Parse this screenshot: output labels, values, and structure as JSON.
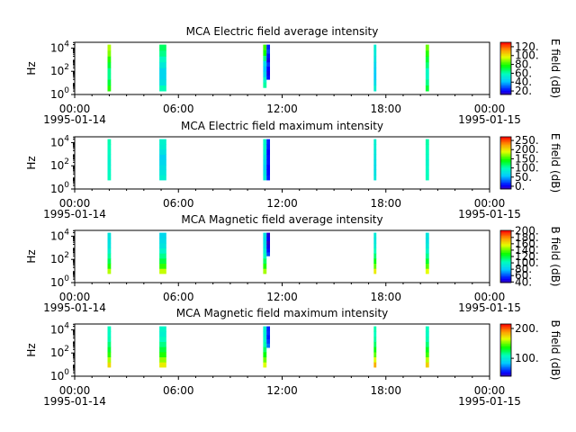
{
  "shared": {
    "x_tick_labels": [
      "00:00",
      "06:00",
      "12:00",
      "18:00",
      "00:00"
    ],
    "x_tick_hours": [
      0,
      6,
      12,
      18,
      24
    ],
    "x_range_hours": [
      0,
      24
    ],
    "date_left": "1995-01-14",
    "date_right": "1995-01-15",
    "y_range_log10": [
      0,
      4.5
    ],
    "y_tick_exponents": [
      0,
      2,
      4
    ],
    "y_tick_base": "10",
    "colormap": "rainbow"
  },
  "chart_data": [
    {
      "type": "heatmap",
      "title": "MCA  Electric field average intensity",
      "ylabel": "Hz",
      "colorbar_label": "E field (dB)",
      "colorbar_ticks": [
        "20.",
        "40.",
        "60.",
        "80.",
        "100.",
        "120."
      ],
      "colorbar_tick_values": [
        20,
        40,
        60,
        80,
        100,
        120
      ],
      "colorbar_range": [
        12,
        130
      ],
      "bursts": [
        {
          "start_hour": 1.9,
          "end_hour": 2.1,
          "low_hz": 2,
          "high_hz": 20000,
          "values": [
            80,
            72,
            64,
            64,
            72,
            80,
            88,
            92
          ]
        },
        {
          "start_hour": 4.9,
          "end_hour": 5.3,
          "low_hz": 2,
          "high_hz": 20000,
          "values": [
            60,
            50,
            46,
            46,
            52,
            58,
            64,
            68
          ]
        },
        {
          "start_hour": 10.9,
          "end_hour": 11.1,
          "low_hz": 4,
          "high_hz": 20000,
          "values": [
            62,
            56,
            46,
            42,
            48,
            64,
            78,
            82
          ]
        },
        {
          "start_hour": 11.1,
          "end_hour": 11.3,
          "low_hz": 20,
          "high_hz": 20000,
          "values": [
            22,
            18,
            20,
            26,
            18,
            22,
            28,
            24
          ]
        },
        {
          "start_hour": 17.3,
          "end_hour": 17.45,
          "low_hz": 2,
          "high_hz": 20000,
          "values": [
            54,
            48,
            42,
            44,
            46,
            50,
            52,
            54
          ]
        },
        {
          "start_hour": 20.3,
          "end_hour": 20.5,
          "low_hz": 2,
          "high_hz": 20000,
          "values": [
            72,
            64,
            58,
            58,
            66,
            72,
            80,
            86
          ]
        }
      ]
    },
    {
      "type": "heatmap",
      "title": "MCA  Electric field maximum intensity",
      "ylabel": "Hz",
      "colorbar_label": "E field (dB)",
      "colorbar_ticks": [
        "0.",
        "50.",
        "100.",
        "150.",
        "200.",
        "250."
      ],
      "colorbar_tick_values": [
        0,
        50,
        100,
        150,
        200,
        250
      ],
      "colorbar_range": [
        -15,
        270
      ],
      "bursts": [
        {
          "start_hour": 1.9,
          "end_hour": 2.1,
          "low_hz": 6,
          "high_hz": 20000,
          "values": [
            100,
            96,
            92,
            90,
            94,
            98,
            100,
            102
          ]
        },
        {
          "start_hour": 4.9,
          "end_hour": 5.3,
          "low_hz": 6,
          "high_hz": 20000,
          "values": [
            88,
            80,
            74,
            68,
            64,
            76,
            86,
            90
          ]
        },
        {
          "start_hour": 10.9,
          "end_hour": 11.1,
          "low_hz": 6,
          "high_hz": 20000,
          "values": [
            82,
            76,
            62,
            70,
            78,
            88,
            92,
            94
          ]
        },
        {
          "start_hour": 11.1,
          "end_hour": 11.3,
          "low_hz": 6,
          "high_hz": 20000,
          "values": [
            12,
            8,
            4,
            10,
            8,
            6,
            12,
            14
          ]
        },
        {
          "start_hour": 17.3,
          "end_hour": 17.45,
          "low_hz": 6,
          "high_hz": 20000,
          "values": [
            80,
            76,
            72,
            74,
            78,
            82,
            86,
            88
          ]
        },
        {
          "start_hour": 20.3,
          "end_hour": 20.5,
          "low_hz": 6,
          "high_hz": 20000,
          "values": [
            100,
            98,
            94,
            92,
            96,
            100,
            102,
            104
          ]
        }
      ]
    },
    {
      "type": "heatmap",
      "title": "MCA  Magnetic field average intensity",
      "ylabel": "Hz",
      "colorbar_label": "B field (dB)",
      "colorbar_ticks": [
        "40.",
        "60.",
        "80.",
        "100.",
        "120.",
        "140.",
        "160.",
        "180.",
        "200."
      ],
      "colorbar_tick_values": [
        40,
        60,
        80,
        100,
        120,
        140,
        160,
        180,
        200
      ],
      "colorbar_range": [
        38,
        202
      ],
      "bursts": [
        {
          "start_hour": 1.9,
          "end_hour": 2.1,
          "low_hz": 6,
          "high_hz": 20000,
          "values": [
            150,
            132,
            118,
            108,
            98,
            92,
            90,
            92
          ]
        },
        {
          "start_hour": 4.9,
          "end_hour": 5.3,
          "low_hz": 6,
          "high_hz": 20000,
          "values": [
            152,
            134,
            120,
            110,
            100,
            92,
            88,
            86
          ]
        },
        {
          "start_hour": 10.9,
          "end_hour": 11.1,
          "low_hz": 6,
          "high_hz": 20000,
          "values": [
            148,
            132,
            116,
            104,
            96,
            90,
            88,
            90
          ]
        },
        {
          "start_hour": 11.1,
          "end_hour": 11.3,
          "low_hz": 200,
          "high_hz": 20000,
          "values": [
            60,
            52,
            46,
            42,
            48,
            44
          ]
        },
        {
          "start_hour": 17.3,
          "end_hour": 17.45,
          "low_hz": 6,
          "high_hz": 20000,
          "values": [
            160,
            140,
            126,
            114,
            104,
            96,
            92,
            94
          ]
        },
        {
          "start_hour": 20.3,
          "end_hour": 20.5,
          "low_hz": 6,
          "high_hz": 20000,
          "values": [
            156,
            138,
            122,
            110,
            100,
            94,
            90,
            92
          ]
        }
      ]
    },
    {
      "type": "heatmap",
      "title": "MCA  Magnetic field maximum intensity",
      "ylabel": "Hz",
      "colorbar_label": "B field (dB)",
      "colorbar_ticks": [
        "100.",
        "200."
      ],
      "colorbar_tick_values": [
        100,
        200
      ],
      "colorbar_range": [
        40,
        215
      ],
      "bursts": [
        {
          "start_hour": 1.9,
          "end_hour": 2.1,
          "low_hz": 6,
          "high_hz": 20000,
          "values": [
            175,
            158,
            142,
            130,
            120,
            112,
            108,
            110
          ]
        },
        {
          "start_hour": 4.9,
          "end_hour": 5.3,
          "low_hz": 6,
          "high_hz": 20000,
          "values": [
            170,
            155,
            140,
            128,
            118,
            110,
            104,
            106
          ]
        },
        {
          "start_hour": 10.9,
          "end_hour": 11.1,
          "low_hz": 6,
          "high_hz": 20000,
          "values": [
            165,
            150,
            136,
            122,
            112,
            106,
            102,
            104
          ]
        },
        {
          "start_hour": 11.1,
          "end_hour": 11.3,
          "low_hz": 300,
          "high_hz": 20000,
          "values": [
            70,
            62,
            56,
            60,
            58
          ]
        },
        {
          "start_hour": 17.3,
          "end_hour": 17.45,
          "low_hz": 6,
          "high_hz": 20000,
          "values": [
            185,
            165,
            148,
            134,
            122,
            114,
            110,
            112
          ]
        },
        {
          "start_hour": 20.3,
          "end_hour": 20.5,
          "low_hz": 6,
          "high_hz": 20000,
          "values": [
            178,
            160,
            144,
            132,
            120,
            112,
            108,
            110
          ]
        }
      ]
    }
  ]
}
